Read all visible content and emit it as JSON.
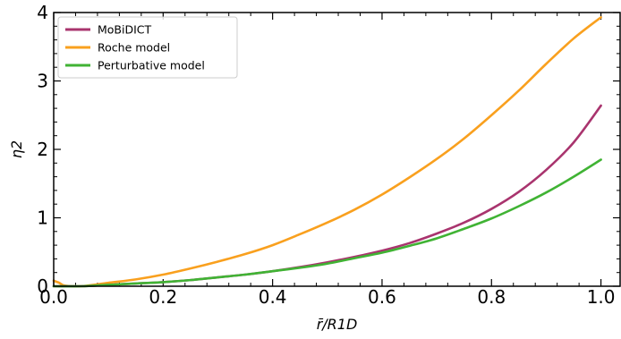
{
  "chart_data": {
    "type": "line",
    "xlabel": "r̄/R1D",
    "ylabel": "η2",
    "xlim": [
      0.0,
      1.035
    ],
    "ylim": [
      0,
      4
    ],
    "x_ticks": [
      "0.0",
      "0.2",
      "0.4",
      "0.6",
      "0.8",
      "1.0"
    ],
    "y_ticks": [
      "0",
      "1",
      "2",
      "3",
      "4"
    ],
    "legend_position": "top-left",
    "grid": false,
    "series": [
      {
        "name": "MoBiDICT",
        "color": "#a9346e",
        "x": [
          0.0,
          0.05,
          0.1,
          0.15,
          0.2,
          0.25,
          0.3,
          0.35,
          0.4,
          0.45,
          0.5,
          0.55,
          0.6,
          0.65,
          0.7,
          0.75,
          0.8,
          0.85,
          0.9,
          0.95,
          1.0
        ],
        "y": [
          0.0,
          0.0,
          0.02,
          0.04,
          0.06,
          0.09,
          0.13,
          0.17,
          0.22,
          0.28,
          0.35,
          0.43,
          0.52,
          0.63,
          0.77,
          0.93,
          1.13,
          1.38,
          1.7,
          2.1,
          2.64
        ]
      },
      {
        "name": "Roche model",
        "color": "#f9a01e",
        "x": [
          0.0,
          0.01,
          0.02,
          0.05,
          0.1,
          0.15,
          0.2,
          0.25,
          0.3,
          0.35,
          0.4,
          0.45,
          0.5,
          0.55,
          0.6,
          0.65,
          0.7,
          0.75,
          0.8,
          0.85,
          0.9,
          0.95,
          1.0
        ],
        "y": [
          0.08,
          0.05,
          0.01,
          0.0,
          0.05,
          0.1,
          0.17,
          0.26,
          0.36,
          0.47,
          0.6,
          0.76,
          0.93,
          1.12,
          1.34,
          1.59,
          1.86,
          2.16,
          2.5,
          2.86,
          3.25,
          3.62,
          3.93
        ]
      },
      {
        "name": "Perturbative model",
        "color": "#40b334",
        "x": [
          0.0,
          0.05,
          0.1,
          0.15,
          0.2,
          0.25,
          0.3,
          0.35,
          0.4,
          0.45,
          0.5,
          0.55,
          0.6,
          0.65,
          0.7,
          0.75,
          0.8,
          0.85,
          0.9,
          0.95,
          1.0
        ],
        "y": [
          0.0,
          0.0,
          0.02,
          0.04,
          0.06,
          0.09,
          0.13,
          0.17,
          0.22,
          0.27,
          0.33,
          0.41,
          0.49,
          0.59,
          0.7,
          0.84,
          0.99,
          1.17,
          1.37,
          1.6,
          1.85
        ]
      }
    ]
  }
}
